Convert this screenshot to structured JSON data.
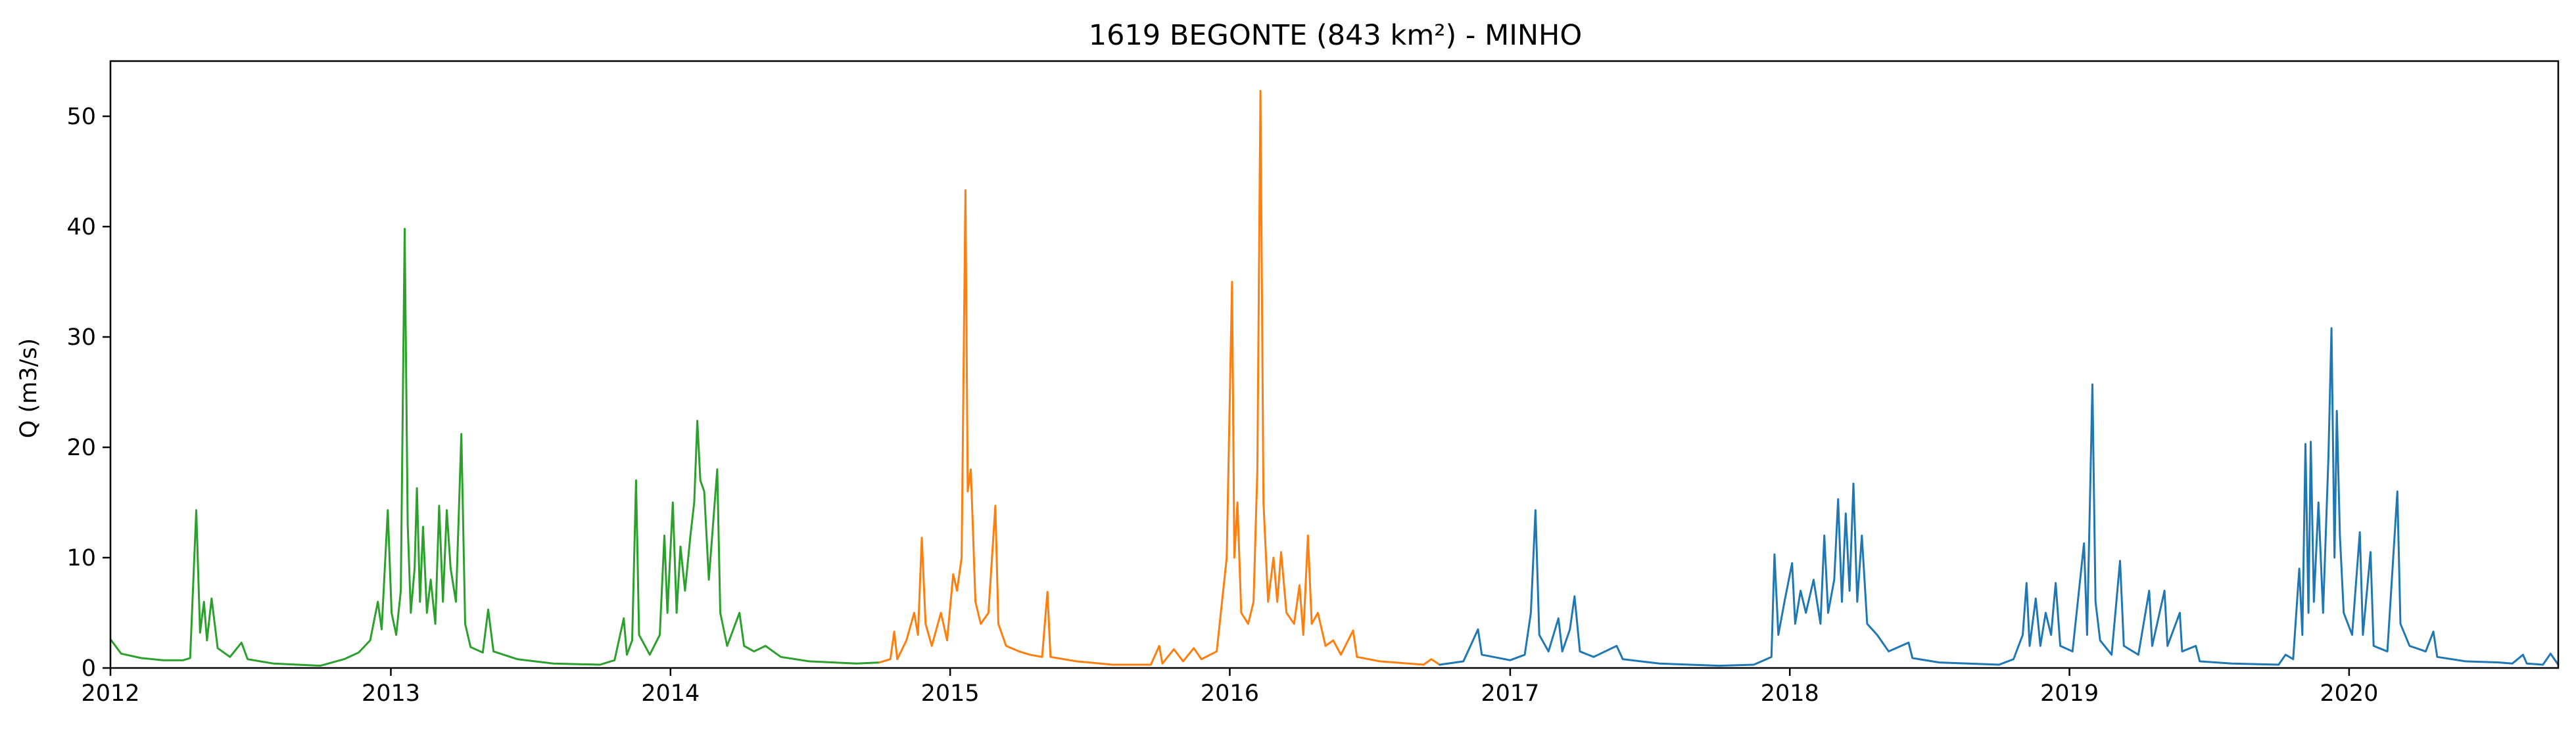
{
  "chart_data": {
    "type": "line",
    "title": "1619 BEGONTE (843 km²) - MINHO",
    "xlabel": "",
    "ylabel": "Q (m3/s)",
    "xlim": [
      "2012-01-01",
      "2020-09-30"
    ],
    "ylim": [
      0,
      55
    ],
    "x_ticks": [
      "2012",
      "2013",
      "2014",
      "2015",
      "2016",
      "2017",
      "2018",
      "2019",
      "2020"
    ],
    "y_ticks": [
      0,
      10,
      20,
      30,
      40,
      50
    ],
    "grid": false,
    "legend": false,
    "series": [
      {
        "color": "#2ca02c",
        "points": [
          [
            "2012-01-01",
            2.6
          ],
          [
            "2012-01-15",
            1.3
          ],
          [
            "2012-02-10",
            0.9
          ],
          [
            "2012-03-10",
            0.7
          ],
          [
            "2012-04-05",
            0.7
          ],
          [
            "2012-04-14",
            0.9
          ],
          [
            "2012-04-22",
            14.3
          ],
          [
            "2012-04-27",
            3.2
          ],
          [
            "2012-05-02",
            6.0
          ],
          [
            "2012-05-06",
            2.5
          ],
          [
            "2012-05-12",
            6.3
          ],
          [
            "2012-05-20",
            1.8
          ],
          [
            "2012-06-05",
            1.0
          ],
          [
            "2012-06-20",
            2.3
          ],
          [
            "2012-06-28",
            0.8
          ],
          [
            "2012-08-01",
            0.4
          ],
          [
            "2012-10-01",
            0.2
          ],
          [
            "2012-11-01",
            0.8
          ],
          [
            "2012-11-20",
            1.4
          ],
          [
            "2012-12-05",
            2.5
          ],
          [
            "2012-12-15",
            6.0
          ],
          [
            "2012-12-20",
            3.5
          ],
          [
            "2012-12-28",
            14.3
          ],
          [
            "2013-01-02",
            5.0
          ],
          [
            "2013-01-08",
            3.0
          ],
          [
            "2013-01-14",
            7.0
          ],
          [
            "2013-01-19",
            39.8
          ],
          [
            "2013-01-23",
            13.0
          ],
          [
            "2013-01-27",
            5.0
          ],
          [
            "2013-02-01",
            9.0
          ],
          [
            "2013-02-04",
            16.3
          ],
          [
            "2013-02-08",
            6.0
          ],
          [
            "2013-02-12",
            12.8
          ],
          [
            "2013-02-17",
            5.0
          ],
          [
            "2013-02-22",
            8.0
          ],
          [
            "2013-02-28",
            4.0
          ],
          [
            "2013-03-05",
            14.7
          ],
          [
            "2013-03-10",
            6.0
          ],
          [
            "2013-03-15",
            14.3
          ],
          [
            "2013-03-20",
            9.0
          ],
          [
            "2013-03-27",
            6.0
          ],
          [
            "2013-04-03",
            21.2
          ],
          [
            "2013-04-08",
            4.0
          ],
          [
            "2013-04-15",
            1.9
          ],
          [
            "2013-05-01",
            1.4
          ],
          [
            "2013-05-08",
            5.3
          ],
          [
            "2013-05-15",
            1.5
          ],
          [
            "2013-06-15",
            0.8
          ],
          [
            "2013-08-01",
            0.4
          ],
          [
            "2013-10-01",
            0.3
          ],
          [
            "2013-10-20",
            0.7
          ],
          [
            "2013-11-01",
            4.5
          ],
          [
            "2013-11-05",
            1.2
          ],
          [
            "2013-11-12",
            2.5
          ],
          [
            "2013-11-17",
            17.0
          ],
          [
            "2013-11-21",
            3.0
          ],
          [
            "2013-12-05",
            1.2
          ],
          [
            "2013-12-18",
            3.0
          ],
          [
            "2013-12-24",
            12.0
          ],
          [
            "2013-12-28",
            5.0
          ],
          [
            "2014-01-04",
            15.0
          ],
          [
            "2014-01-09",
            5.0
          ],
          [
            "2014-01-14",
            11.0
          ],
          [
            "2014-01-20",
            7.0
          ],
          [
            "2014-01-27",
            12.0
          ],
          [
            "2014-02-01",
            15.0
          ],
          [
            "2014-02-05",
            22.4
          ],
          [
            "2014-02-09",
            17.0
          ],
          [
            "2014-02-14",
            16.0
          ],
          [
            "2014-02-20",
            8.0
          ],
          [
            "2014-03-03",
            18.0
          ],
          [
            "2014-03-07",
            5.0
          ],
          [
            "2014-03-16",
            2.0
          ],
          [
            "2014-04-01",
            5.0
          ],
          [
            "2014-04-07",
            2.0
          ],
          [
            "2014-04-20",
            1.5
          ],
          [
            "2014-05-05",
            2.0
          ],
          [
            "2014-05-25",
            1.0
          ],
          [
            "2014-07-01",
            0.6
          ],
          [
            "2014-09-01",
            0.4
          ],
          [
            "2014-10-01",
            0.5
          ]
        ]
      },
      {
        "color": "#ff7f0e",
        "points": [
          [
            "2014-10-01",
            0.5
          ],
          [
            "2014-10-15",
            0.8
          ],
          [
            "2014-10-20",
            3.3
          ],
          [
            "2014-10-24",
            0.8
          ],
          [
            "2014-11-05",
            2.5
          ],
          [
            "2014-11-15",
            5.0
          ],
          [
            "2014-11-20",
            3.0
          ],
          [
            "2014-11-25",
            11.8
          ],
          [
            "2014-11-30",
            4.0
          ],
          [
            "2014-12-08",
            2.0
          ],
          [
            "2014-12-20",
            5.0
          ],
          [
            "2014-12-28",
            2.5
          ],
          [
            "2015-01-05",
            8.5
          ],
          [
            "2015-01-10",
            7.0
          ],
          [
            "2015-01-16",
            10.0
          ],
          [
            "2015-01-21",
            43.3
          ],
          [
            "2015-01-24",
            16.0
          ],
          [
            "2015-01-28",
            18.0
          ],
          [
            "2015-02-03",
            6.0
          ],
          [
            "2015-02-10",
            4.0
          ],
          [
            "2015-02-20",
            5.0
          ],
          [
            "2015-03-01",
            14.7
          ],
          [
            "2015-03-05",
            4.0
          ],
          [
            "2015-03-15",
            2.0
          ],
          [
            "2015-04-01",
            1.5
          ],
          [
            "2015-04-15",
            1.2
          ],
          [
            "2015-05-01",
            1.0
          ],
          [
            "2015-05-08",
            6.9
          ],
          [
            "2015-05-12",
            1.0
          ],
          [
            "2015-06-15",
            0.6
          ],
          [
            "2015-08-01",
            0.3
          ],
          [
            "2015-09-20",
            0.3
          ],
          [
            "2015-10-01",
            2.0
          ],
          [
            "2015-10-05",
            0.4
          ],
          [
            "2015-10-20",
            1.7
          ],
          [
            "2015-11-01",
            0.6
          ],
          [
            "2015-11-15",
            1.8
          ],
          [
            "2015-11-25",
            0.8
          ],
          [
            "2015-12-15",
            1.5
          ],
          [
            "2015-12-28",
            10.0
          ],
          [
            "2016-01-04",
            35.0
          ],
          [
            "2016-01-07",
            10.0
          ],
          [
            "2016-01-11",
            15.0
          ],
          [
            "2016-01-16",
            5.0
          ],
          [
            "2016-01-25",
            4.0
          ],
          [
            "2016-02-01",
            6.0
          ],
          [
            "2016-02-06",
            18.0
          ],
          [
            "2016-02-10",
            52.3
          ],
          [
            "2016-02-14",
            15.0
          ],
          [
            "2016-02-20",
            6.0
          ],
          [
            "2016-02-27",
            10.0
          ],
          [
            "2016-03-03",
            6.0
          ],
          [
            "2016-03-08",
            10.5
          ],
          [
            "2016-03-15",
            5.0
          ],
          [
            "2016-03-25",
            4.0
          ],
          [
            "2016-04-01",
            7.5
          ],
          [
            "2016-04-06",
            3.0
          ],
          [
            "2016-04-12",
            12.0
          ],
          [
            "2016-04-17",
            4.0
          ],
          [
            "2016-04-25",
            5.0
          ],
          [
            "2016-05-05",
            2.0
          ],
          [
            "2016-05-15",
            2.5
          ],
          [
            "2016-05-25",
            1.2
          ],
          [
            "2016-06-10",
            3.4
          ],
          [
            "2016-06-15",
            1.0
          ],
          [
            "2016-07-15",
            0.6
          ],
          [
            "2016-09-10",
            0.3
          ],
          [
            "2016-09-20",
            0.8
          ],
          [
            "2016-10-01",
            0.3
          ]
        ]
      },
      {
        "color": "#1f77b4",
        "points": [
          [
            "2016-10-01",
            0.3
          ],
          [
            "2016-11-01",
            0.6
          ],
          [
            "2016-11-20",
            3.5
          ],
          [
            "2016-11-25",
            1.2
          ],
          [
            "2016-12-10",
            1.0
          ],
          [
            "2017-01-01",
            0.7
          ],
          [
            "2017-01-20",
            1.2
          ],
          [
            "2017-01-28",
            5.0
          ],
          [
            "2017-02-03",
            14.3
          ],
          [
            "2017-02-08",
            3.0
          ],
          [
            "2017-02-20",
            1.5
          ],
          [
            "2017-03-05",
            4.5
          ],
          [
            "2017-03-10",
            1.5
          ],
          [
            "2017-03-20",
            3.5
          ],
          [
            "2017-03-26",
            6.5
          ],
          [
            "2017-04-02",
            1.5
          ],
          [
            "2017-04-20",
            1.0
          ],
          [
            "2017-05-20",
            2.0
          ],
          [
            "2017-05-28",
            0.8
          ],
          [
            "2017-07-15",
            0.4
          ],
          [
            "2017-10-01",
            0.2
          ],
          [
            "2017-11-15",
            0.3
          ],
          [
            "2017-12-08",
            1.0
          ],
          [
            "2017-12-12",
            10.3
          ],
          [
            "2017-12-17",
            3.0
          ],
          [
            "2017-12-25",
            6.0
          ],
          [
            "2018-01-04",
            9.5
          ],
          [
            "2018-01-08",
            4.0
          ],
          [
            "2018-01-15",
            7.0
          ],
          [
            "2018-01-22",
            5.0
          ],
          [
            "2018-02-01",
            8.0
          ],
          [
            "2018-02-10",
            4.0
          ],
          [
            "2018-02-15",
            12.0
          ],
          [
            "2018-02-20",
            5.0
          ],
          [
            "2018-02-28",
            8.0
          ],
          [
            "2018-03-05",
            15.3
          ],
          [
            "2018-03-10",
            6.0
          ],
          [
            "2018-03-15",
            14.0
          ],
          [
            "2018-03-20",
            7.0
          ],
          [
            "2018-03-25",
            16.7
          ],
          [
            "2018-03-30",
            6.0
          ],
          [
            "2018-04-05",
            12.0
          ],
          [
            "2018-04-12",
            4.0
          ],
          [
            "2018-04-25",
            3.0
          ],
          [
            "2018-05-10",
            1.5
          ],
          [
            "2018-06-05",
            2.3
          ],
          [
            "2018-06-10",
            0.9
          ],
          [
            "2018-07-15",
            0.5
          ],
          [
            "2018-10-01",
            0.3
          ],
          [
            "2018-10-20",
            0.8
          ],
          [
            "2018-11-01",
            3.0
          ],
          [
            "2018-11-06",
            7.7
          ],
          [
            "2018-11-10",
            2.0
          ],
          [
            "2018-11-18",
            6.3
          ],
          [
            "2018-11-24",
            2.0
          ],
          [
            "2018-12-01",
            5.0
          ],
          [
            "2018-12-08",
            3.0
          ],
          [
            "2018-12-14",
            7.7
          ],
          [
            "2018-12-20",
            2.0
          ],
          [
            "2019-01-05",
            1.5
          ],
          [
            "2019-01-20",
            11.3
          ],
          [
            "2019-01-24",
            3.0
          ],
          [
            "2019-01-31",
            25.7
          ],
          [
            "2019-02-04",
            6.0
          ],
          [
            "2019-02-10",
            2.5
          ],
          [
            "2019-02-25",
            1.2
          ],
          [
            "2019-03-08",
            9.7
          ],
          [
            "2019-03-13",
            2.0
          ],
          [
            "2019-04-01",
            1.2
          ],
          [
            "2019-04-15",
            7.0
          ],
          [
            "2019-04-19",
            2.0
          ],
          [
            "2019-05-05",
            7.0
          ],
          [
            "2019-05-09",
            2.0
          ],
          [
            "2019-05-25",
            5.0
          ],
          [
            "2019-05-28",
            1.5
          ],
          [
            "2019-06-15",
            2.0
          ],
          [
            "2019-06-20",
            0.6
          ],
          [
            "2019-08-01",
            0.4
          ],
          [
            "2019-10-01",
            0.3
          ],
          [
            "2019-10-10",
            1.2
          ],
          [
            "2019-10-20",
            0.8
          ],
          [
            "2019-10-28",
            9.0
          ],
          [
            "2019-11-01",
            3.0
          ],
          [
            "2019-11-05",
            20.3
          ],
          [
            "2019-11-09",
            5.0
          ],
          [
            "2019-11-12",
            20.5
          ],
          [
            "2019-11-16",
            6.0
          ],
          [
            "2019-11-22",
            15.0
          ],
          [
            "2019-11-28",
            5.0
          ],
          [
            "2019-12-05",
            19.0
          ],
          [
            "2019-12-09",
            30.8
          ],
          [
            "2019-12-13",
            10.0
          ],
          [
            "2019-12-16",
            23.3
          ],
          [
            "2019-12-20",
            12.0
          ],
          [
            "2019-12-25",
            5.0
          ],
          [
            "2020-01-05",
            3.0
          ],
          [
            "2020-01-15",
            12.3
          ],
          [
            "2020-01-19",
            3.0
          ],
          [
            "2020-01-29",
            10.5
          ],
          [
            "2020-02-02",
            2.0
          ],
          [
            "2020-02-20",
            1.5
          ],
          [
            "2020-03-04",
            16.0
          ],
          [
            "2020-03-08",
            4.0
          ],
          [
            "2020-03-20",
            2.0
          ],
          [
            "2020-04-10",
            1.5
          ],
          [
            "2020-04-20",
            3.3
          ],
          [
            "2020-04-25",
            1.0
          ],
          [
            "2020-06-01",
            0.6
          ],
          [
            "2020-07-15",
            0.5
          ],
          [
            "2020-08-01",
            0.4
          ],
          [
            "2020-08-15",
            1.2
          ],
          [
            "2020-08-20",
            0.4
          ],
          [
            "2020-09-10",
            0.3
          ],
          [
            "2020-09-20",
            1.3
          ],
          [
            "2020-09-30",
            0.3
          ]
        ]
      }
    ]
  }
}
